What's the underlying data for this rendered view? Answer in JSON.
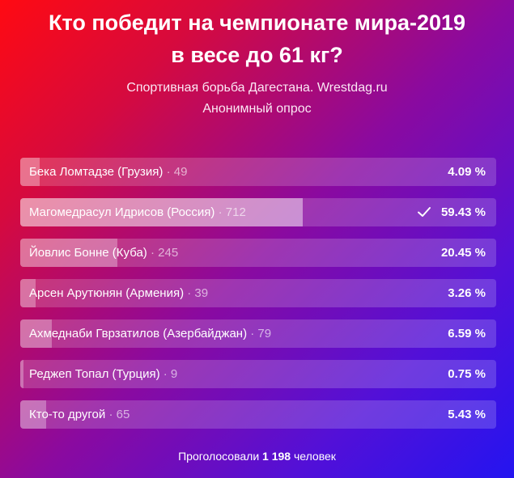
{
  "poll": {
    "title_line1": "Кто победит на чемпионате мира-2019",
    "title_line2": "в весе до 61 кг?",
    "subtitle_line1": "Спортивная борьба Дагестана. Wrestdag.ru",
    "subtitle_line2": "Анонимный опрос",
    "options": [
      {
        "name": "Бека Ломтадзе (Грузия)",
        "count": "49",
        "percent": "4.09 %",
        "share": 0.0409,
        "selected": false
      },
      {
        "name": "Магомедрасул Идрисов (Россия)",
        "count": "712",
        "percent": "59.43 %",
        "share": 0.5943,
        "selected": true
      },
      {
        "name": "Йовлис Бонне (Куба)",
        "count": "245",
        "percent": "20.45 %",
        "share": 0.2045,
        "selected": false
      },
      {
        "name": "Арсен Арутюнян (Армения)",
        "count": "39",
        "percent": "3.26 %",
        "share": 0.0326,
        "selected": false
      },
      {
        "name": "Ахмеднаби Гврзатилов (Азербайджан)",
        "count": "79",
        "percent": "6.59 %",
        "share": 0.0659,
        "selected": false
      },
      {
        "name": "Реджеп Топал (Турция)",
        "count": "9",
        "percent": "0.75 %",
        "share": 0.0075,
        "selected": false
      },
      {
        "name": "Кто-то другой",
        "count": "65",
        "percent": "5.43 %",
        "share": 0.0543,
        "selected": false
      }
    ],
    "separator": "·",
    "check_icon": "check-icon",
    "footer_prefix": "Проголосовали",
    "footer_total": "1 198",
    "footer_suffix": "человек"
  }
}
